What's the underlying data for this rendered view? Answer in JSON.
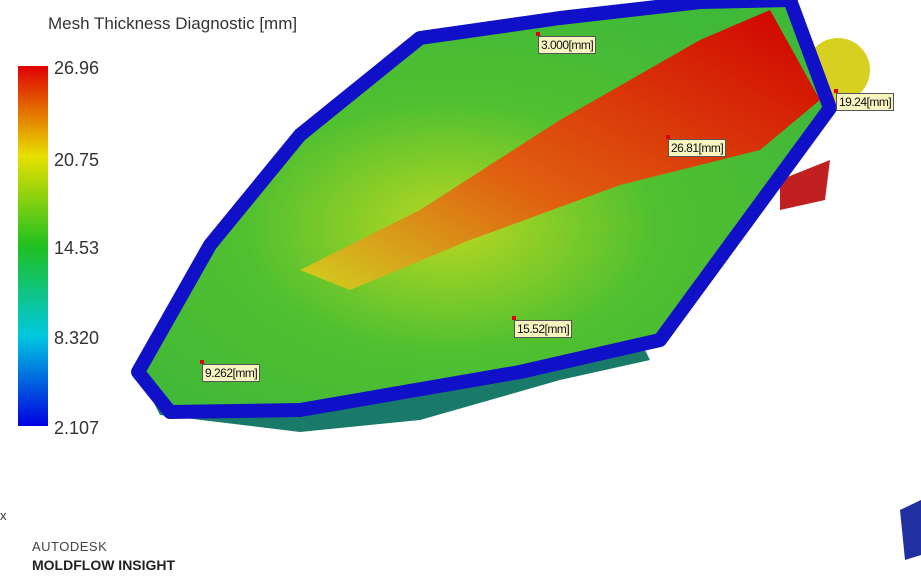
{
  "legend": {
    "title": "Mesh Thickness Diagnostic [mm]",
    "ticks": [
      "26.96",
      "20.75",
      "14.53",
      "8.320",
      "2.107"
    ]
  },
  "probes": [
    "3.000[mm]",
    "19.24[mm]",
    "26.81[mm]",
    "15.52[mm]",
    "9.262[mm]"
  ],
  "triad": {
    "axis": "x"
  },
  "brand": {
    "line1": "AUTODESK",
    "line2": "MOLDFLOW INSIGHT"
  }
}
